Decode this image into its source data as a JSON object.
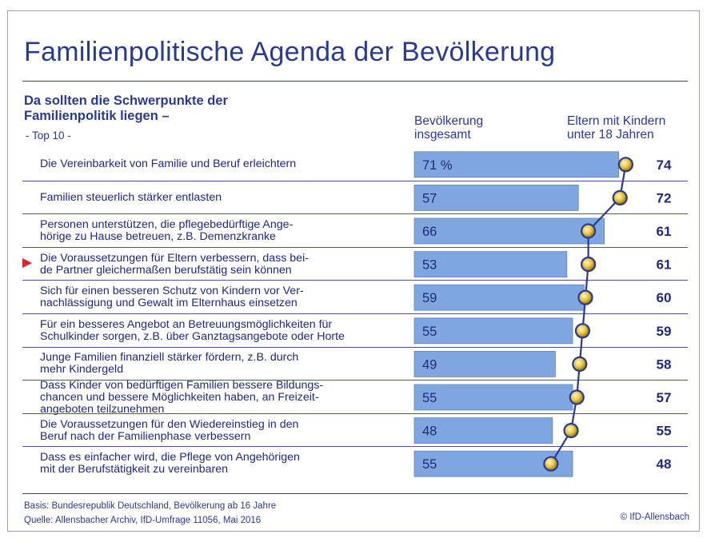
{
  "title": "Familienpolitische Agenda der Bevölkerung",
  "subtitle_line1": "Da sollten die Schwerpunkte der",
  "subtitle_line2": "Familienpolitik liegen –",
  "subtitle_note": "- Top 10 -",
  "col1_line1": "Bevölkerung",
  "col1_line2": "insgesamt",
  "col2_line1": "Eltern mit Kindern",
  "col2_line2": "unter 18 Jahren",
  "footnote_basis": "Basis: Bundesrepublik Deutschland, Bevölkerung ab 16 Jahre",
  "footnote_source": "Quelle: Allensbacher Archiv, IfD-Umfrage 11056, Mai 2016",
  "copyright": "© IfD-Allensbach",
  "colors": {
    "bar": "#7fa6df",
    "line": "#2a3a8f",
    "dot": "#e8c640",
    "marker": "#d8262e"
  },
  "marked_row_index": 3,
  "chart_data": {
    "type": "bar",
    "categories": [
      "Die Vereinbarkeit von Familie und Beruf erleichtern",
      "Familien steuerlich stärker entlasten",
      "Personen unterstützen, die pflegebedürftige Ange-\nhörige zu Hause betreuen, z.B. Demenzkranke",
      "Die Voraussetzungen für Eltern verbessern, dass bei-\nde Partner gleichermaßen berufstätig sein können",
      "Sich für einen besseren Schutz von Kindern vor Ver-\nnachlässigung und Gewalt im Elternhaus einsetzen",
      "Für ein besseres Angebot an Betreuungsmöglichkeiten für\nSchulkinder sorgen, z.B. über Ganztagsangebote oder Horte",
      "Junge Familien finanziell stärker fördern, z.B. durch\nmehr Kindergeld",
      "Dass Kinder von bedürftigen Familien bessere Bildungs-\nchancen und bessere Möglichkeiten haben, an Freizeit-\nangeboten teilzunehmen",
      "Die Voraussetzungen für den Wiedereinstieg in den\nBeruf nach der Familienphase verbessern",
      "Dass es einfacher wird, die Pflege von Angehörigen\nmit der Berufstätigkeit zu vereinbaren"
    ],
    "series": [
      {
        "name": "Bevölkerung insgesamt",
        "values": [
          71,
          57,
          66,
          53,
          59,
          55,
          49,
          55,
          48,
          55
        ],
        "labels": [
          "71 %",
          "57",
          "66",
          "53",
          "59",
          "55",
          "49",
          "55",
          "48",
          "55"
        ]
      },
      {
        "name": "Eltern mit Kindern unter 18 Jahren",
        "values": [
          74,
          72,
          61,
          61,
          60,
          59,
          58,
          57,
          55,
          48
        ],
        "labels": [
          "74",
          "72",
          "61",
          "61",
          "60",
          "59",
          "58",
          "57",
          "55",
          "48"
        ]
      }
    ],
    "xlim": [
      0,
      100
    ]
  }
}
